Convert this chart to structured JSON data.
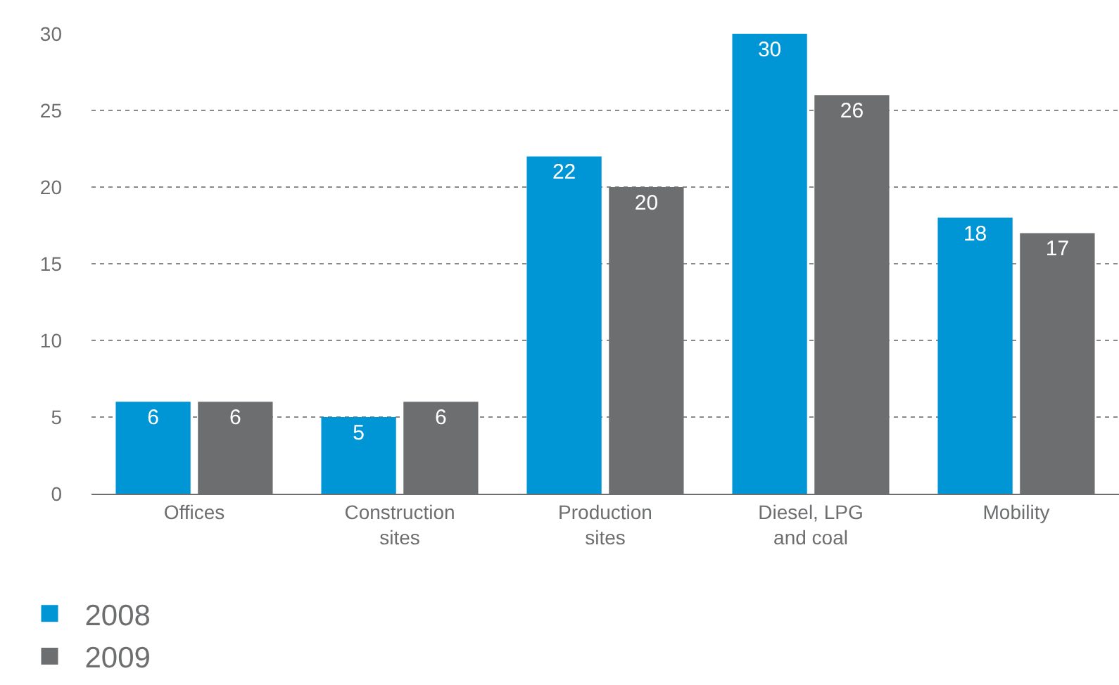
{
  "chart_data": {
    "type": "bar",
    "categories": [
      "Offices",
      "Construction\nsites",
      "Production\nsites",
      "Diesel, LPG\nand coal",
      "Mobility"
    ],
    "series": [
      {
        "name": "2008",
        "color": "#0096d6",
        "values": [
          6,
          5,
          22,
          30,
          18
        ]
      },
      {
        "name": "2009",
        "color": "#6d6e70",
        "values": [
          6,
          6,
          20,
          26,
          17
        ]
      }
    ],
    "ylim": [
      0,
      30
    ],
    "yticks": [
      0,
      5,
      10,
      15,
      20,
      25,
      30
    ],
    "grid": "y",
    "legend": "bottom left",
    "data_labels": true
  }
}
